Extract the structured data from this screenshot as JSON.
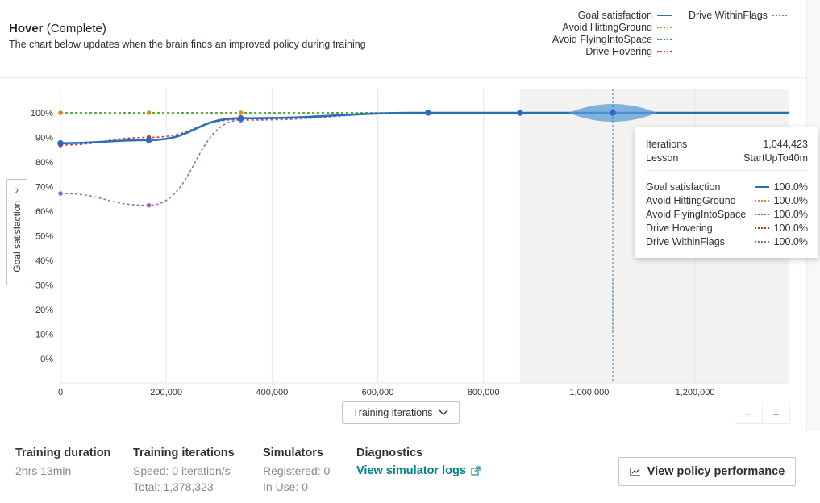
{
  "header": {
    "title": "Hover",
    "status": "(Complete)",
    "description": "The chart below updates when the brain finds an improved policy during training"
  },
  "legend": [
    {
      "label": "Goal satisfaction",
      "color": "#2a6ebb",
      "style": "solid"
    },
    {
      "label": "Avoid HittingGround",
      "color": "#e8871e",
      "style": "dotted"
    },
    {
      "label": "Avoid FlyingIntoSpace",
      "color": "#2ca02c",
      "style": "dotted"
    },
    {
      "label": "Drive Hovering",
      "color": "#c0392b",
      "style": "dotted"
    },
    {
      "label": "Drive WithinFlags",
      "color": "#9467bd",
      "style": "dotted"
    }
  ],
  "yaxis_toggle": {
    "label": "Goal satisfaction",
    "icon": "chevron-right-icon"
  },
  "x_axis_select": {
    "label": "Training iterations",
    "icon": "chevron-down-icon"
  },
  "zoom": {
    "minus": "−",
    "plus": "+"
  },
  "chart_data": {
    "type": "line",
    "title": "",
    "xlabel": "Training iterations",
    "ylabel": "Goal satisfaction",
    "xlim": [
      0,
      1378323
    ],
    "ylim": [
      0,
      100
    ],
    "x_ticks": [
      0,
      200000,
      400000,
      600000,
      800000,
      1000000,
      1200000
    ],
    "x_tick_labels": [
      "0",
      "200,000",
      "400,000",
      "600,000",
      "800,000",
      "1,000,000",
      "1,200,000"
    ],
    "y_ticks": [
      0,
      10,
      20,
      30,
      40,
      50,
      60,
      70,
      80,
      90,
      100
    ],
    "y_tick_labels": [
      "0%",
      "10%",
      "20%",
      "30%",
      "40%",
      "50%",
      "60%",
      "70%",
      "80%",
      "90%",
      "100%"
    ],
    "grid": true,
    "highlight_range": [
      870000,
      1378323
    ],
    "cursor_x": 1044423,
    "series": [
      {
        "name": "Goal satisfaction",
        "color": "#2a6ebb",
        "style": "solid",
        "points": [
          [
            0,
            87.6
          ],
          [
            167000,
            88.9
          ],
          [
            341000,
            97.8
          ],
          [
            695000,
            100
          ],
          [
            869000,
            100
          ],
          [
            1044423,
            100
          ],
          [
            1378323,
            100
          ]
        ],
        "markers": [
          [
            0,
            87.6
          ],
          [
            167000,
            88.9
          ],
          [
            341000,
            97.8
          ],
          [
            695000,
            100
          ],
          [
            869000,
            100
          ],
          [
            1044423,
            100
          ]
        ]
      },
      {
        "name": "Avoid HittingGround",
        "color": "#e8871e",
        "style": "dotted",
        "points": [
          [
            0,
            100
          ],
          [
            167000,
            100
          ],
          [
            341000,
            100
          ],
          [
            695000,
            100
          ],
          [
            1378323,
            100
          ]
        ],
        "markers": [
          [
            0,
            100
          ],
          [
            167000,
            100
          ],
          [
            341000,
            100
          ]
        ]
      },
      {
        "name": "Avoid FlyingIntoSpace",
        "color": "#2ca02c",
        "style": "dotted",
        "points": [
          [
            0,
            100
          ],
          [
            167000,
            100
          ],
          [
            341000,
            100
          ],
          [
            695000,
            100
          ],
          [
            1378323,
            100
          ]
        ],
        "markers": []
      },
      {
        "name": "Drive Hovering",
        "color": "#c0392b",
        "style": "dotted",
        "points": [
          [
            0,
            86.9
          ],
          [
            167000,
            90.0
          ],
          [
            341000,
            97.3
          ],
          [
            695000,
            100
          ],
          [
            1378323,
            100
          ]
        ],
        "markers": [
          [
            0,
            86.9
          ],
          [
            167000,
            90.0
          ]
        ]
      },
      {
        "name": "Drive WithinFlags",
        "color": "#9467bd",
        "style": "dotted",
        "points": [
          [
            0,
            67.2
          ],
          [
            167000,
            62.4
          ],
          [
            341000,
            97.0
          ],
          [
            695000,
            100
          ],
          [
            1378323,
            100
          ]
        ],
        "markers": [
          [
            0,
            67.2
          ],
          [
            167000,
            62.4
          ],
          [
            341000,
            97.0
          ]
        ]
      }
    ]
  },
  "tooltip": {
    "iterations_label": "Iterations",
    "iterations_value": "1,044,423",
    "lesson_label": "Lesson",
    "lesson_value": "StartUpTo40m",
    "rows": [
      {
        "label": "Goal satisfaction",
        "value": "100.0%"
      },
      {
        "label": "Avoid HittingGround",
        "value": "100.0%"
      },
      {
        "label": "Avoid FlyingIntoSpace",
        "value": "100.0%"
      },
      {
        "label": "Drive Hovering",
        "value": "100.0%"
      },
      {
        "label": "Drive WithinFlags",
        "value": "100.0%"
      }
    ]
  },
  "footer": {
    "duration": {
      "title": "Training duration",
      "value": "2hrs 13min"
    },
    "iterations": {
      "title": "Training iterations",
      "speed": "Speed: 0 iteration/s",
      "total": "Total: 1,378,323"
    },
    "simulators": {
      "title": "Simulators",
      "registered": "Registered: 0",
      "in_use": "In Use: 0"
    },
    "diagnostics": {
      "title": "Diagnostics",
      "link": "View simulator logs",
      "icon": "external-link-icon"
    },
    "policy_button": {
      "label": "View policy performance",
      "icon": "trend-chart-icon"
    }
  }
}
